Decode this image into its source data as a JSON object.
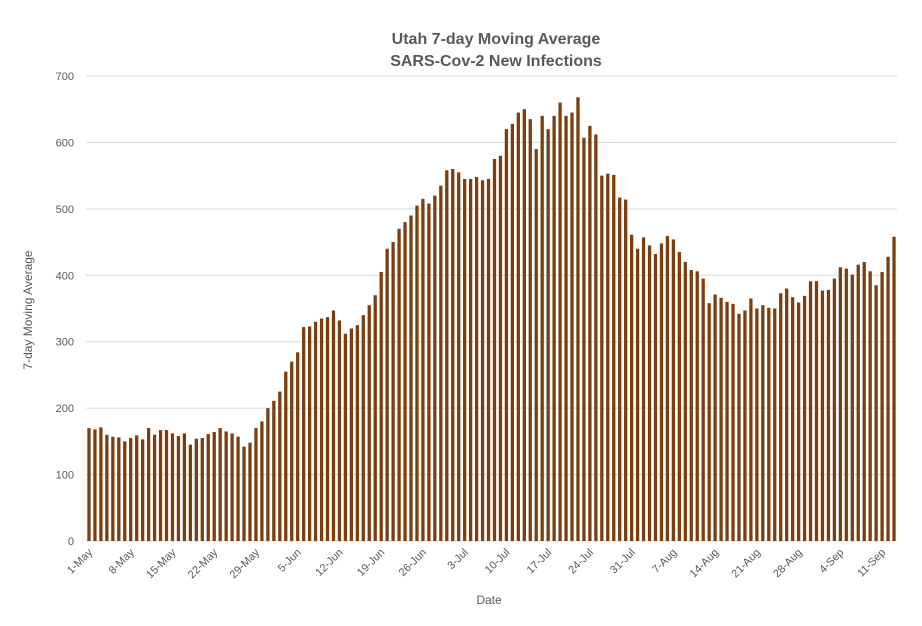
{
  "chart_data": {
    "type": "bar",
    "title": "Utah 7-day Moving Average",
    "subtitle": "SARS-Cov-2 New Infections",
    "xlabel": "Date",
    "ylabel": "7-day Moving Average",
    "ylim": [
      0,
      700
    ],
    "yticks": [
      0,
      100,
      200,
      300,
      400,
      500,
      600,
      700
    ],
    "grid": true,
    "legend": "none",
    "bar_color": "#7B3F0F",
    "x_tick_labels": [
      "1-May",
      "8-May",
      "15-May",
      "22-May",
      "29-May",
      "5-Jun",
      "12-Jun",
      "19-Jun",
      "26-Jun",
      "3-Jul",
      "10-Jul",
      "17-Jul",
      "24-Jul",
      "31-Jul",
      "7-Aug",
      "14-Aug",
      "21-Aug",
      "28-Aug",
      "4-Sep",
      "11-Sep"
    ],
    "x_start": "1-May",
    "x_end": "16-Sep",
    "values": [
      170,
      168,
      171,
      160,
      157,
      156,
      150,
      155,
      159,
      153,
      170,
      160,
      167,
      167,
      162,
      158,
      162,
      145,
      154,
      155,
      161,
      164,
      170,
      165,
      162,
      157,
      142,
      148,
      170,
      180,
      200,
      211,
      225,
      255,
      270,
      284,
      322,
      323,
      330,
      335,
      337,
      347,
      332,
      312,
      320,
      325,
      340,
      355,
      370,
      405,
      440,
      450,
      470,
      480,
      490,
      505,
      515,
      508,
      520,
      535,
      558,
      560,
      555,
      545,
      545,
      548,
      543,
      545,
      575,
      580,
      620,
      628,
      645,
      650,
      635,
      590,
      640,
      620,
      640,
      660,
      640,
      645,
      668,
      607,
      625,
      612,
      550,
      553,
      551,
      517,
      514,
      461,
      440,
      457,
      445,
      432,
      448,
      459,
      454,
      435,
      420,
      408,
      406,
      395,
      358,
      371,
      366,
      360,
      357,
      342,
      347,
      365,
      350,
      355,
      351,
      350,
      373,
      380,
      367,
      359,
      369,
      391,
      391,
      377,
      378,
      395,
      412,
      410,
      401,
      416,
      420,
      406,
      385,
      405,
      428,
      458
    ]
  }
}
